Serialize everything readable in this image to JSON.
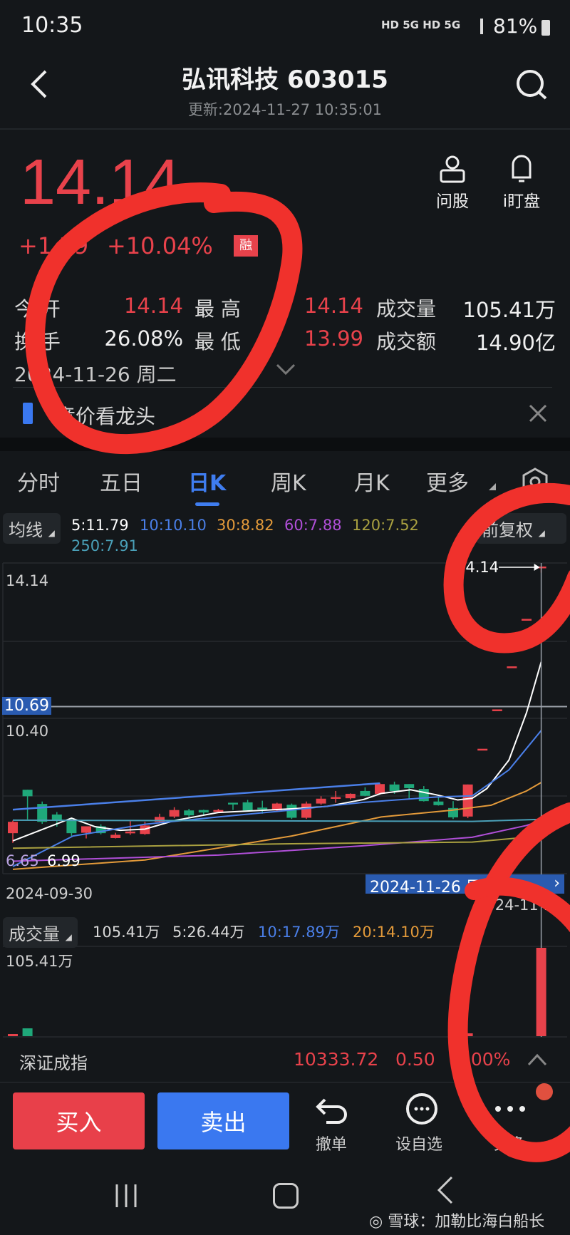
{
  "status_bar": {
    "time": "10:35",
    "network": "HD 5G HD 5G",
    "battery": "81%"
  },
  "header": {
    "title": "弘讯科技 603015",
    "subtitle": "更新:2024-11-27 10:35:01"
  },
  "quote": {
    "price": "14.14",
    "change": "+1.29",
    "change_pct": "+10.04%",
    "margin_badge": "融",
    "actions": [
      {
        "label": "问股",
        "icon": "advisor-icon"
      },
      {
        "label": "i盯盘",
        "icon": "bell-icon"
      }
    ]
  },
  "stats": {
    "open_label": "今 开",
    "open": "14.14",
    "high_label": "最 高",
    "high": "14.14",
    "volume_label": "成交量",
    "volume": "105.41万",
    "turnover_label": "换 手",
    "turnover": "26.08%",
    "low_label": "最 低",
    "low": "13.99",
    "amount_label": "成交额",
    "amount": "14.90亿",
    "date": "2024-11-26 周二"
  },
  "banner": {
    "text": "竞价看龙头"
  },
  "tabs": [
    {
      "label": "分时",
      "active": false
    },
    {
      "label": "五日",
      "active": false
    },
    {
      "label": "日K",
      "active": true
    },
    {
      "label": "周K",
      "active": false
    },
    {
      "label": "月K",
      "active": false
    },
    {
      "label": "更多",
      "active": false
    }
  ],
  "ma_legend": {
    "selector": "均线",
    "items": [
      {
        "text": "5:11.79",
        "color": "#ffffff"
      },
      {
        "text": "10:10.10",
        "color": "#4a7fe8"
      },
      {
        "text": "30:8.82",
        "color": "#e39a3a"
      },
      {
        "text": "60:7.88",
        "color": "#b04fd8"
      },
      {
        "text": "120:7.52",
        "color": "#a9a040"
      },
      {
        "text": "250:7.91",
        "color": "#4aa0b8"
      }
    ],
    "adjust": "前复权"
  },
  "chart_data": {
    "type": "candlestick",
    "ylim": [
      6.65,
      14.14
    ],
    "y_labels": [
      "14.14",
      "10.40"
    ],
    "crosshair_price": "10.69",
    "max_marker": "14.14",
    "min_labels": [
      "6.65",
      "6.99"
    ],
    "x_start_label": "2024-09-30",
    "crosshair_date": "2024-11-26 周二",
    "x_end_label": "2024-11-26",
    "up_color": "#e8424b",
    "down_color": "#1fa87a",
    "candles": [
      [
        7.57,
        7.85,
        7.88,
        7.33
      ],
      [
        8.64,
        8.48,
        8.64,
        7.91
      ],
      [
        8.29,
        7.85,
        8.35,
        7.8
      ],
      [
        8.03,
        7.89,
        8.09,
        7.73
      ],
      [
        7.89,
        7.57,
        7.94,
        7.5
      ],
      [
        7.58,
        7.74,
        7.74,
        7.44
      ],
      [
        7.74,
        7.57,
        7.79,
        7.54
      ],
      [
        7.45,
        7.53,
        7.58,
        7.44
      ],
      [
        7.58,
        7.61,
        7.88,
        7.53
      ],
      [
        7.55,
        7.76,
        7.85,
        7.53
      ],
      [
        7.85,
        7.97,
        8.05,
        7.82
      ],
      [
        7.98,
        8.14,
        8.21,
        7.94
      ],
      [
        8.13,
        8.01,
        8.17,
        7.97
      ],
      [
        8.14,
        8.08,
        8.15,
        8.01
      ],
      [
        8.11,
        8.14,
        8.17,
        8.08
      ],
      [
        8.32,
        8.3,
        8.32,
        8.14
      ],
      [
        8.33,
        8.13,
        8.39,
        8.11
      ],
      [
        8.2,
        8.17,
        8.37,
        8.05
      ],
      [
        8.13,
        8.3,
        8.32,
        8.11
      ],
      [
        8.27,
        7.95,
        8.3,
        7.92
      ],
      [
        7.95,
        8.3,
        8.35,
        7.92
      ],
      [
        8.3,
        8.42,
        8.48,
        8.27
      ],
      [
        8.44,
        8.46,
        8.61,
        8.32
      ],
      [
        8.43,
        8.54,
        8.55,
        8.4
      ],
      [
        8.61,
        8.49,
        8.7,
        8.48
      ],
      [
        8.54,
        8.78,
        8.81,
        8.52
      ],
      [
        8.77,
        8.61,
        8.84,
        8.54
      ],
      [
        8.78,
        8.68,
        8.78,
        8.4
      ],
      [
        8.66,
        8.36,
        8.73,
        8.35
      ],
      [
        8.35,
        8.26,
        8.46,
        8.25
      ],
      [
        8.19,
        7.96,
        8.36,
        7.92
      ],
      [
        7.98,
        8.77,
        8.77,
        7.94
      ],
      [
        9.65,
        9.65,
        9.65,
        9.65
      ],
      [
        10.62,
        10.62,
        10.62,
        10.62
      ],
      [
        11.68,
        11.68,
        11.68,
        11.68
      ],
      [
        12.85,
        12.85,
        12.85,
        12.85
      ],
      [
        14.14,
        14.14,
        14.14,
        13.99
      ]
    ],
    "ma_lines": [
      {
        "name": "5",
        "color": "#ffffff",
        "points": [
          [
            0,
            7.38
          ],
          [
            4,
            7.94
          ],
          [
            5.6,
            7.73
          ],
          [
            7.3,
            7.64
          ],
          [
            9,
            7.67
          ],
          [
            11,
            7.88
          ],
          [
            14,
            8.08
          ],
          [
            19,
            8.17
          ],
          [
            21.4,
            8.23
          ],
          [
            23.9,
            8.4
          ],
          [
            25.1,
            8.55
          ],
          [
            27.1,
            8.64
          ],
          [
            28.8,
            8.52
          ],
          [
            30.3,
            8.39
          ],
          [
            31.3,
            8.43
          ],
          [
            32.3,
            8.67
          ],
          [
            33.8,
            9.37
          ],
          [
            35,
            10.54
          ],
          [
            36,
            11.79
          ]
        ]
      },
      {
        "name": "10",
        "color": "#4a7fe8",
        "points": [
          [
            0,
            6.75
          ],
          [
            4.1,
            7.5
          ],
          [
            9,
            7.79
          ],
          [
            14,
            7.97
          ],
          [
            19,
            8.14
          ],
          [
            23.9,
            8.33
          ],
          [
            28.8,
            8.46
          ],
          [
            31.3,
            8.49
          ],
          [
            33.8,
            9.13
          ],
          [
            36,
            10.1
          ]
        ]
      },
      {
        "name": "30",
        "color": "#e39a3a",
        "points": [
          [
            0,
            6.68
          ],
          [
            9,
            6.91
          ],
          [
            19,
            7.5
          ],
          [
            25.1,
            7.97
          ],
          [
            30,
            8.14
          ],
          [
            32.6,
            8.26
          ],
          [
            35,
            8.61
          ],
          [
            36,
            8.82
          ]
        ]
      },
      {
        "name": "60",
        "color": "#b04fd8",
        "points": [
          [
            0,
            6.88
          ],
          [
            14,
            7.03
          ],
          [
            23.9,
            7.26
          ],
          [
            31.3,
            7.47
          ],
          [
            35,
            7.76
          ],
          [
            36,
            7.88
          ]
        ]
      },
      {
        "name": "120",
        "color": "#a9a040",
        "points": [
          [
            0,
            7.2
          ],
          [
            19,
            7.31
          ],
          [
            31.3,
            7.35
          ],
          [
            35,
            7.47
          ],
          [
            36,
            7.52
          ]
        ]
      },
      {
        "name": "250",
        "color": "#4aa0b8",
        "points": [
          [
            0,
            7.89
          ],
          [
            31.3,
            7.86
          ],
          [
            36,
            7.91
          ]
        ]
      }
    ],
    "trend_line": {
      "color": "#4a7fe8",
      "points": [
        [
          0,
          8.15
        ],
        [
          25,
          8.8
        ]
      ]
    }
  },
  "volume": {
    "selector": "成交量",
    "items": [
      {
        "text": "105.41万",
        "color": "#d8d8d8"
      },
      {
        "text": "5:26.44万",
        "color": "#d8d8d8"
      },
      {
        "text": "10:17.89万",
        "color": "#4a7fe8"
      },
      {
        "text": "20:14.10万",
        "color": "#e39a3a"
      }
    ],
    "max_label": "105.41万",
    "last_bar": 105.41
  },
  "index_bar": {
    "name": "深证成指",
    "value": "10333.72",
    "change": "0.50",
    "pct": "0.00%"
  },
  "bottom": {
    "buy": "买入",
    "sell": "卖出",
    "cancel": "撤单",
    "watchlist": "设自选",
    "more": "更多"
  },
  "watermark": "雪球：加勒比海白船长"
}
